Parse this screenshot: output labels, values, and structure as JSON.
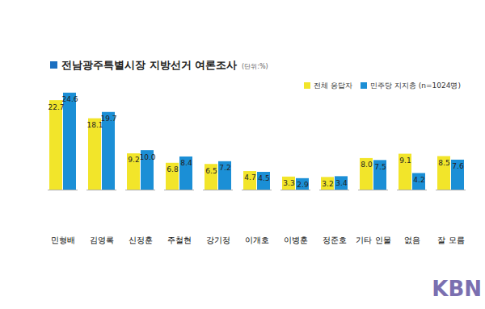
{
  "chart_data": {
    "type": "bar",
    "title": "전남광주특별시장 지방선거 여론조사",
    "subtitle": "(단위:%)",
    "categories": [
      "민형배",
      "김영록",
      "신정훈",
      "주철현",
      "강기정",
      "이개호",
      "이병훈",
      "정준호",
      "기타 인물",
      "없음",
      "잘 모름"
    ],
    "series": [
      {
        "name": "전체 응답자",
        "color": "#f2e52a",
        "values": [
          22.7,
          18.1,
          9.2,
          6.8,
          6.5,
          4.7,
          3.3,
          3.2,
          8.0,
          9.1,
          8.5
        ],
        "value_labels": [
          "22.7",
          "18.1",
          "9.2",
          "6.8",
          "6.5",
          "4.7",
          "3.3",
          "3.2",
          "8.0",
          "9.1",
          "8.5"
        ]
      },
      {
        "name": "민주당 지지층 (n=1024명)",
        "color": "#1b8fd6",
        "values": [
          24.6,
          19.7,
          10.0,
          8.4,
          7.2,
          4.5,
          2.9,
          3.4,
          7.5,
          4.2,
          7.6
        ],
        "value_labels": [
          "24.6",
          "19.7",
          "10.0",
          "8.4",
          "7.2",
          "4.5",
          "2.9",
          "3.4",
          "7.5",
          "4.2",
          "7.6"
        ]
      }
    ],
    "ylim": [
      0,
      26
    ],
    "grid": false,
    "legend": "top-right",
    "data_labels": true,
    "tick_labels": "x",
    "annotations": [
      "KBN"
    ]
  }
}
